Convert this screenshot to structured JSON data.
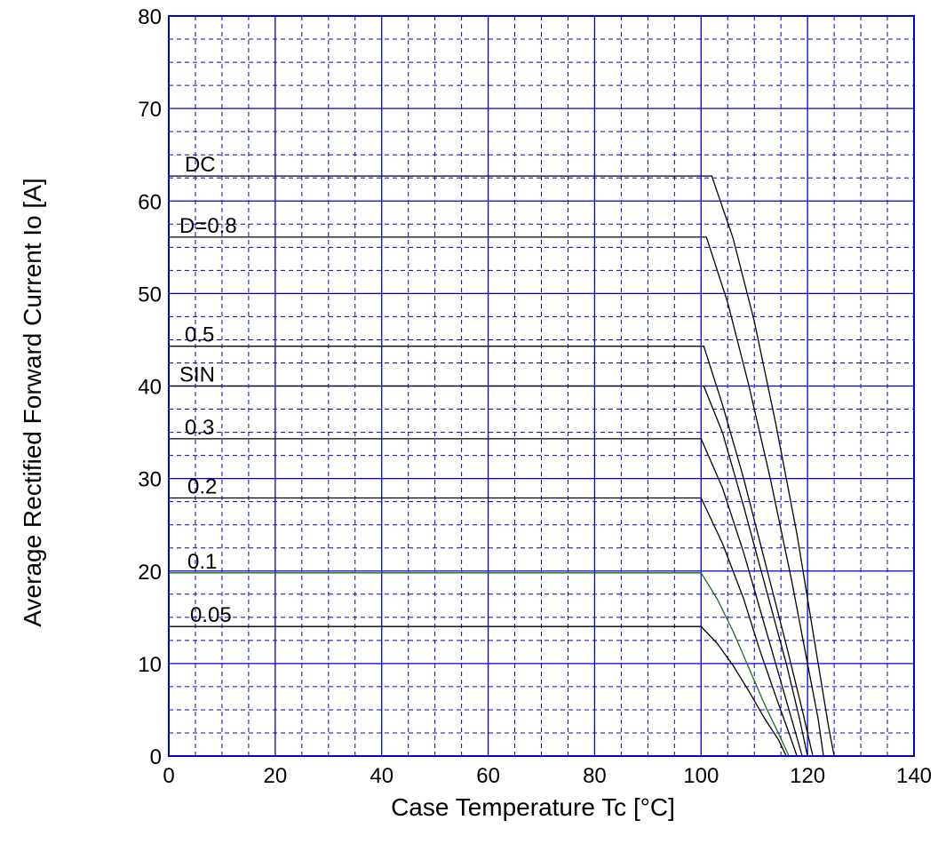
{
  "chart_data": {
    "type": "line",
    "xlabel": "Case Temperature   Tc  [°C]",
    "ylabel": "Average Rectified Forward Current     Io [A]",
    "xlim": [
      0,
      140
    ],
    "ylim": [
      0,
      80
    ],
    "x_ticks": [
      0,
      20,
      40,
      60,
      80,
      100,
      120,
      140
    ],
    "y_ticks": [
      0,
      10,
      20,
      30,
      40,
      50,
      60,
      70,
      80
    ],
    "grid": {
      "major": true,
      "minor": true
    },
    "colors": {
      "grid": "#0000cc",
      "line": "#000000",
      "highlight": "#1f6b1f"
    },
    "series": [
      {
        "name": "DC",
        "points": [
          [
            0,
            62.7
          ],
          [
            102,
            62.7
          ],
          [
            106,
            56
          ],
          [
            110,
            47
          ],
          [
            114,
            36
          ],
          [
            118,
            24
          ],
          [
            122,
            10
          ],
          [
            124,
            3
          ],
          [
            125,
            0
          ]
        ]
      },
      {
        "name": "D=0.8",
        "points": [
          [
            0,
            56.1
          ],
          [
            101,
            56.1
          ],
          [
            105,
            49
          ],
          [
            109,
            40
          ],
          [
            113,
            30
          ],
          [
            117,
            19
          ],
          [
            120,
            10
          ],
          [
            122,
            4
          ],
          [
            123,
            0
          ]
        ]
      },
      {
        "name": "0.5",
        "points": [
          [
            0,
            44.3
          ],
          [
            100.5,
            44.3
          ],
          [
            104,
            38
          ],
          [
            108,
            30
          ],
          [
            112,
            21
          ],
          [
            116,
            12
          ],
          [
            119,
            5
          ],
          [
            121,
            0
          ]
        ]
      },
      {
        "name": "SIN",
        "points": [
          [
            0,
            40
          ],
          [
            100.5,
            40
          ],
          [
            104,
            35
          ],
          [
            108,
            27
          ],
          [
            112,
            18.5
          ],
          [
            116,
            10
          ],
          [
            118.5,
            4
          ],
          [
            120,
            0
          ]
        ]
      },
      {
        "name": "0.3",
        "points": [
          [
            0,
            34.3
          ],
          [
            100,
            34.3
          ],
          [
            104,
            29
          ],
          [
            108,
            22
          ],
          [
            112,
            14
          ],
          [
            115,
            8
          ],
          [
            117.5,
            3
          ],
          [
            119,
            0
          ]
        ]
      },
      {
        "name": "0.2",
        "points": [
          [
            0,
            27.9
          ],
          [
            100,
            27.9
          ],
          [
            104,
            23
          ],
          [
            108,
            17
          ],
          [
            111,
            11.5
          ],
          [
            114,
            6.5
          ],
          [
            116.5,
            2.5
          ],
          [
            118,
            0
          ]
        ]
      },
      {
        "name": "0.1",
        "points": [
          [
            0,
            19.8
          ],
          [
            100,
            19.8
          ],
          [
            103,
            17
          ],
          [
            106,
            13.5
          ],
          [
            109,
            9.5
          ],
          [
            112,
            5.5
          ],
          [
            114.5,
            2.5
          ],
          [
            116.5,
            0
          ]
        ]
      },
      {
        "name": "0.05",
        "points": [
          [
            0,
            14
          ],
          [
            100,
            14
          ],
          [
            103,
            12.2
          ],
          [
            106,
            9.8
          ],
          [
            109,
            7
          ],
          [
            112,
            4
          ],
          [
            114.5,
            1.8
          ],
          [
            116,
            0
          ]
        ]
      }
    ],
    "labels": [
      {
        "text": "DC",
        "series": "DC"
      },
      {
        "text": "D=0.8",
        "series": "D=0.8"
      },
      {
        "text": "0.5",
        "series": "0.5"
      },
      {
        "text": "SIN",
        "series": "SIN"
      },
      {
        "text": "0.3",
        "series": "0.3"
      },
      {
        "text": "0.2",
        "series": "0.2"
      },
      {
        "text": "0.1",
        "series": "0.1"
      },
      {
        "text": "0.05",
        "series": "0.05"
      }
    ]
  }
}
